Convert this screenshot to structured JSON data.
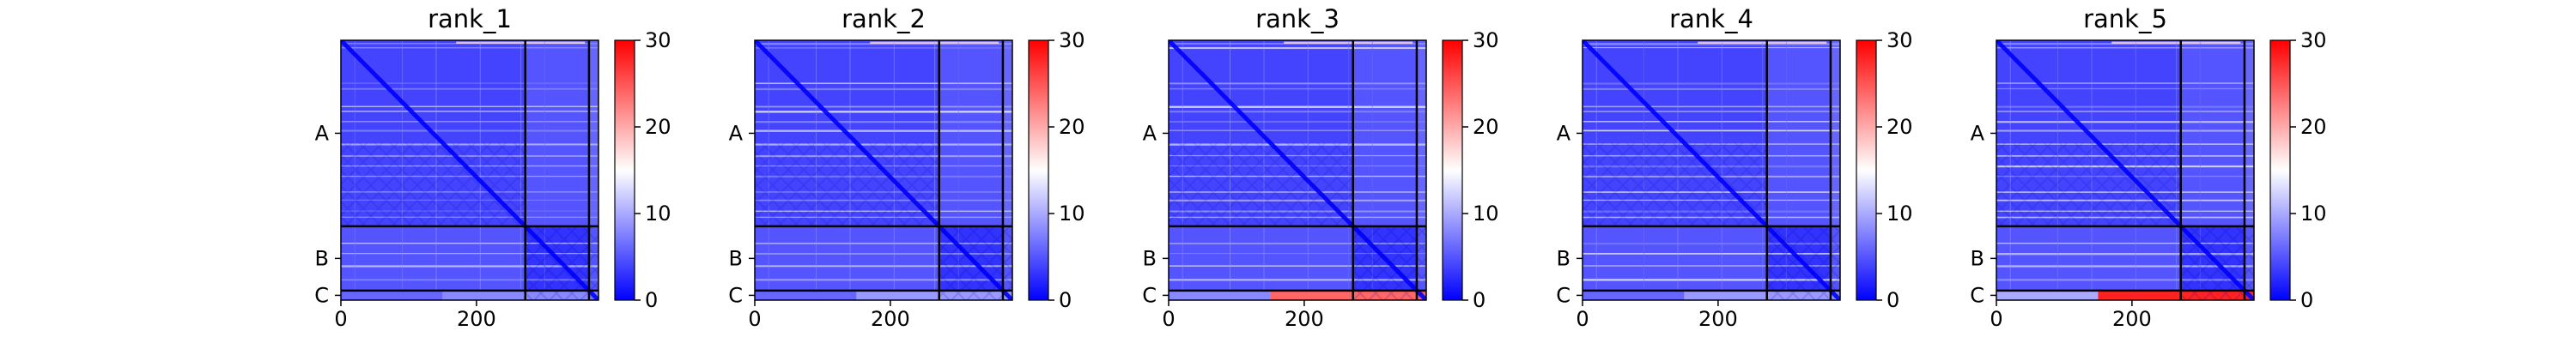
{
  "chart_data": [
    {
      "type": "heatmap",
      "title": "rank_1",
      "xlabel": "",
      "ylabel": "",
      "xlim": [
        0,
        380
      ],
      "ylim": [
        380,
        0
      ],
      "x_ticks": [
        0,
        200
      ],
      "y_tick_labels": [
        "A",
        "B",
        "C"
      ],
      "chain_boundaries": [
        272,
        366
      ],
      "colorbar": {
        "colormap": "bwr",
        "range": [
          0,
          30
        ],
        "ticks": [
          0,
          10,
          20,
          30
        ]
      },
      "pae_summary": {
        "A-A": 4,
        "A-B": 5,
        "B-A": 5,
        "B-B": 3,
        "C-row_first_residues": 6,
        "C-row_late_residues": 8
      }
    },
    {
      "type": "heatmap",
      "title": "rank_2",
      "xlabel": "",
      "ylabel": "",
      "xlim": [
        0,
        380
      ],
      "ylim": [
        380,
        0
      ],
      "x_ticks": [
        0,
        200
      ],
      "y_tick_labels": [
        "A",
        "B",
        "C"
      ],
      "chain_boundaries": [
        272,
        366
      ],
      "colorbar": {
        "colormap": "bwr",
        "range": [
          0,
          30
        ],
        "ticks": [
          0,
          10,
          20,
          30
        ]
      },
      "pae_summary": {
        "A-A": 4,
        "A-B": 5,
        "B-A": 5,
        "B-B": 3,
        "C-row_first_residues": 6,
        "C-row_late_residues": 9
      }
    },
    {
      "type": "heatmap",
      "title": "rank_3",
      "xlabel": "",
      "ylabel": "",
      "xlim": [
        0,
        380
      ],
      "ylim": [
        380,
        0
      ],
      "x_ticks": [
        0,
        200
      ],
      "y_tick_labels": [
        "A",
        "B",
        "C"
      ],
      "chain_boundaries": [
        272,
        366
      ],
      "colorbar": {
        "colormap": "bwr",
        "range": [
          0,
          30
        ],
        "ticks": [
          0,
          10,
          20,
          30
        ]
      },
      "pae_summary": {
        "A-A": 4,
        "A-B": 5,
        "B-A": 5,
        "B-B": 3,
        "C-row_first_residues": 8,
        "C-row_late_residues": 24
      }
    },
    {
      "type": "heatmap",
      "title": "rank_4",
      "xlabel": "",
      "ylabel": "",
      "xlim": [
        0,
        380
      ],
      "ylim": [
        380,
        0
      ],
      "x_ticks": [
        0,
        200
      ],
      "y_tick_labels": [
        "A",
        "B",
        "C"
      ],
      "chain_boundaries": [
        272,
        366
      ],
      "colorbar": {
        "colormap": "bwr",
        "range": [
          0,
          30
        ],
        "ticks": [
          0,
          10,
          20,
          30
        ]
      },
      "pae_summary": {
        "A-A": 4,
        "A-B": 5,
        "B-A": 5,
        "B-B": 3,
        "C-row_first_residues": 6,
        "C-row_late_residues": 9
      }
    },
    {
      "type": "heatmap",
      "title": "rank_5",
      "xlabel": "",
      "ylabel": "",
      "xlim": [
        0,
        380
      ],
      "ylim": [
        380,
        0
      ],
      "x_ticks": [
        0,
        200
      ],
      "y_tick_labels": [
        "A",
        "B",
        "C"
      ],
      "chain_boundaries": [
        272,
        366
      ],
      "colorbar": {
        "colormap": "bwr",
        "range": [
          0,
          30
        ],
        "ticks": [
          0,
          10,
          20,
          30
        ]
      },
      "pae_summary": {
        "A-A": 4,
        "A-B": 5,
        "B-A": 5,
        "B-B": 3,
        "C-row_first_residues": 10,
        "C-row_late_residues": 28
      }
    }
  ]
}
